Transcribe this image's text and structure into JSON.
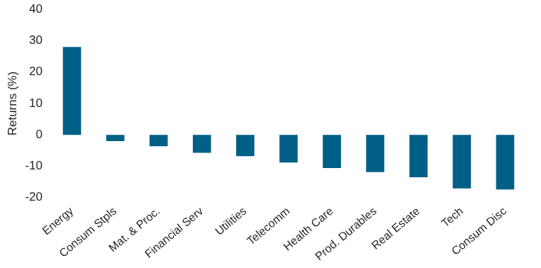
{
  "chart_data": {
    "type": "bar",
    "ylabel": "Returns (%)",
    "categories": [
      "Energy",
      "Consum Stpls",
      "Mat. & Proc.",
      "Financial Serv",
      "Utilities",
      "Telecomm",
      "Health Care",
      "Prod. Durables",
      "Real Estate",
      "Tech",
      "Consum Disc"
    ],
    "values": [
      28,
      -2,
      -3.6,
      -5.7,
      -6.8,
      -8.8,
      -10.6,
      -11.9,
      -13.5,
      -17.1,
      -17.4
    ],
    "color": "#005f87",
    "ylim": [
      -20,
      40
    ],
    "yticks": [
      -20,
      -10,
      0,
      10,
      20,
      30,
      40
    ],
    "grid": false
  }
}
